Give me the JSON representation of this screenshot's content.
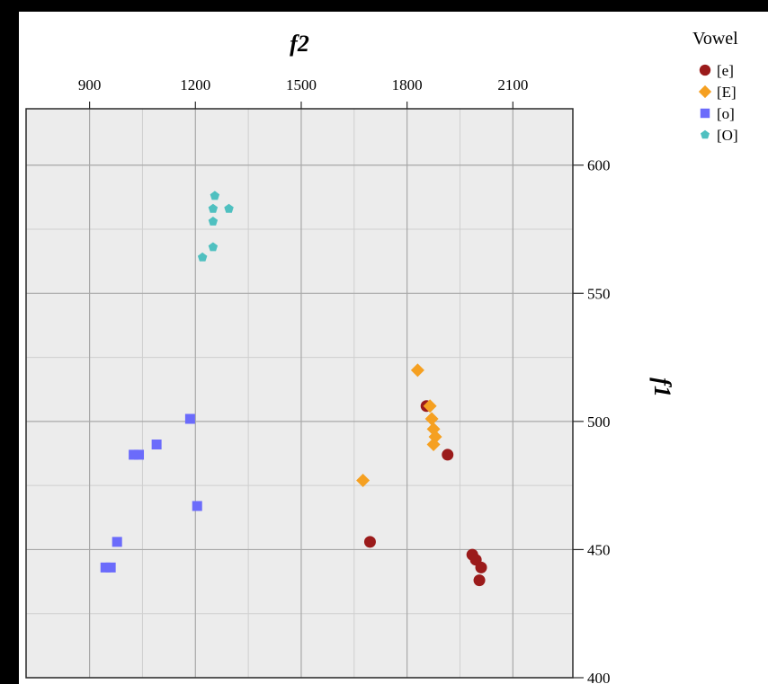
{
  "chart_data": {
    "type": "scatter",
    "title": "",
    "xlabel": "f2",
    "ylabel": "f1",
    "x_axis_position": "top",
    "x_axis_reversed": false,
    "y_axis_position": "right",
    "y_axis_reversed": true,
    "xlim": [
      720,
      2270
    ],
    "ylim": [
      400,
      622
    ],
    "x_ticks": [
      900,
      1200,
      1500,
      1800,
      2100
    ],
    "y_ticks": [
      600,
      550,
      500,
      450,
      400
    ],
    "x_minor_gridlines": [
      1050,
      1350,
      1650,
      1950
    ],
    "y_minor_gridlines": [
      575,
      525,
      475,
      425
    ],
    "grid": true,
    "background_color": "#ececec",
    "legend": {
      "title": "Vowel",
      "placement": "top-right-outside"
    },
    "series": [
      {
        "name": "[e]",
        "marker": "circle",
        "color": "#9b1b1b",
        "points": [
          {
            "x": 1855,
            "y": 506
          },
          {
            "x": 1915,
            "y": 487
          },
          {
            "x": 1695,
            "y": 453
          },
          {
            "x": 1985,
            "y": 448
          },
          {
            "x": 1995,
            "y": 446
          },
          {
            "x": 2010,
            "y": 443
          },
          {
            "x": 2005,
            "y": 438
          }
        ]
      },
      {
        "name": "[E]",
        "marker": "diamond",
        "color": "#f5a021",
        "points": [
          {
            "x": 1830,
            "y": 520
          },
          {
            "x": 1865,
            "y": 506
          },
          {
            "x": 1870,
            "y": 501
          },
          {
            "x": 1875,
            "y": 497
          },
          {
            "x": 1880,
            "y": 494
          },
          {
            "x": 1875,
            "y": 491
          },
          {
            "x": 1675,
            "y": 477
          }
        ]
      },
      {
        "name": "[o]",
        "marker": "square",
        "color": "#6b6bfb",
        "points": [
          {
            "x": 1185,
            "y": 501
          },
          {
            "x": 1090,
            "y": 491
          },
          {
            "x": 1025,
            "y": 487
          },
          {
            "x": 1040,
            "y": 487
          },
          {
            "x": 1205,
            "y": 467
          },
          {
            "x": 978,
            "y": 453
          },
          {
            "x": 945,
            "y": 443
          },
          {
            "x": 960,
            "y": 443
          }
        ]
      },
      {
        "name": "[O]",
        "marker": "pentagon",
        "color": "#4fc0c0",
        "points": [
          {
            "x": 1255,
            "y": 588
          },
          {
            "x": 1250,
            "y": 583
          },
          {
            "x": 1295,
            "y": 583
          },
          {
            "x": 1250,
            "y": 578
          },
          {
            "x": 1250,
            "y": 568
          },
          {
            "x": 1220,
            "y": 564
          }
        ]
      }
    ]
  }
}
